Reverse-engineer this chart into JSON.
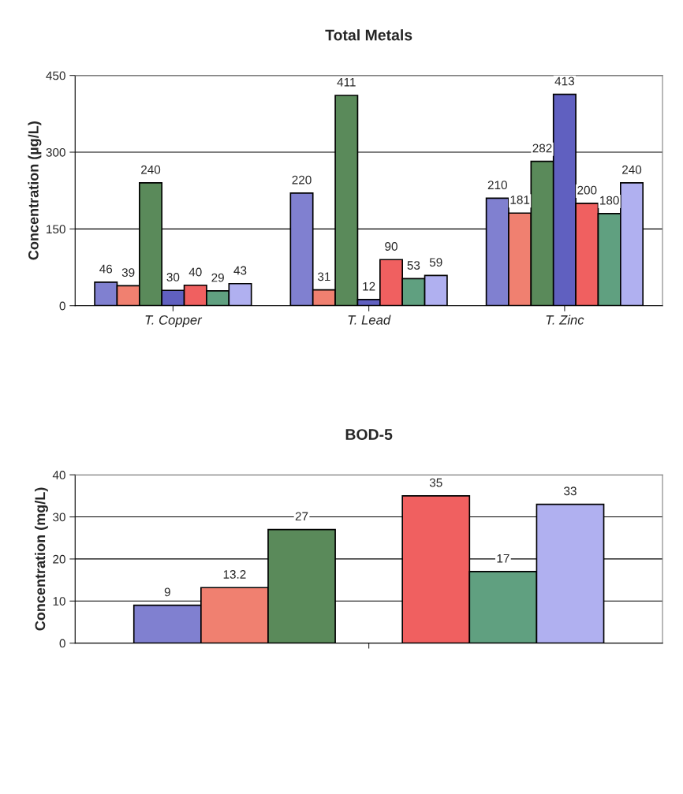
{
  "chart_data": [
    {
      "type": "bar",
      "title": "Total Metals",
      "ylabel": "Concentration (µg/L)",
      "categories": [
        "T. Copper",
        "T. Lead",
        "T. Zinc"
      ],
      "series": [
        {
          "color": "#8080d0",
          "values": [
            46,
            220,
            210
          ]
        },
        {
          "color": "#f08070",
          "values": [
            39,
            31,
            181
          ]
        },
        {
          "color": "#5a8a5a",
          "values": [
            240,
            411,
            282
          ]
        },
        {
          "color": "#6060c0",
          "values": [
            30,
            12,
            413
          ]
        },
        {
          "color": "#f06060",
          "values": [
            40,
            90,
            200
          ]
        },
        {
          "color": "#60a080",
          "values": [
            29,
            53,
            180
          ]
        },
        {
          "color": "#b0b0f0",
          "values": [
            43,
            59,
            240
          ]
        }
      ],
      "ylim": [
        0,
        450
      ],
      "yticks": [
        0,
        150,
        300,
        450
      ],
      "grid": "y",
      "data_labels": true
    },
    {
      "type": "bar",
      "title": "BOD-5",
      "ylabel": "Concentration (mg/L)",
      "categories": [
        null
      ],
      "series": [
        {
          "color": "#8080d0",
          "values": [
            9
          ]
        },
        {
          "color": "#f08070",
          "values": [
            13.2
          ]
        },
        {
          "color": "#5a8a5a",
          "values": [
            27
          ]
        },
        {
          "values": [
            null
          ]
        },
        {
          "color": "#f06060",
          "values": [
            35
          ]
        },
        {
          "color": "#60a080",
          "values": [
            17
          ]
        },
        {
          "color": "#b0b0f0",
          "values": [
            33
          ]
        }
      ],
      "ylim": [
        0,
        40
      ],
      "yticks": [
        0,
        10,
        20,
        30,
        40
      ],
      "grid": "y",
      "data_labels": true
    }
  ]
}
